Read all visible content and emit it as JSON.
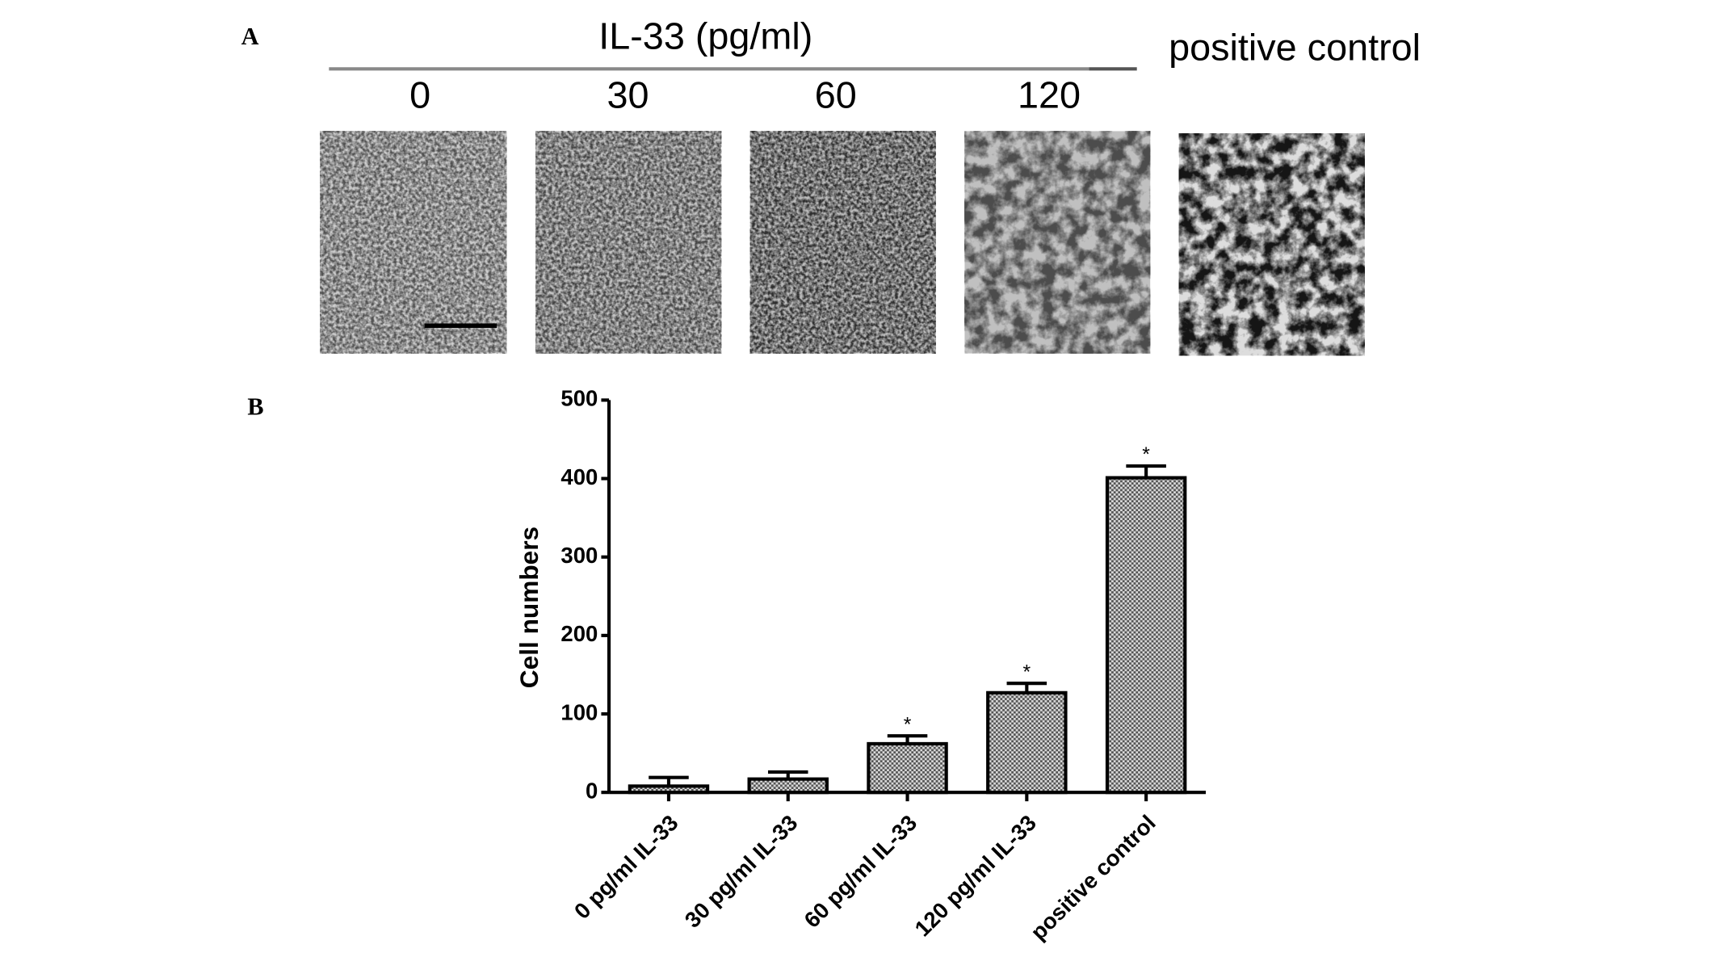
{
  "panel_labels": [
    "A",
    "B"
  ],
  "panel_a": {
    "header": "IL-33 (pg/ml)",
    "concentrations": [
      "0",
      "30",
      "60",
      "120"
    ],
    "control_label": "positive control"
  },
  "chart_data": {
    "type": "bar",
    "ylabel": "Cell numbers",
    "categories": [
      "0 pg/ml IL-33",
      "30 pg/ml IL-33",
      "60 pg/ml IL-33",
      "120 pg/ml IL-33",
      "positive control"
    ],
    "values": [
      8,
      17,
      62,
      127,
      401
    ],
    "errors": [
      11,
      9,
      10,
      12,
      15
    ],
    "significance": [
      null,
      null,
      "*",
      "*",
      "*"
    ],
    "ylim": [
      0,
      500
    ],
    "yticks": [
      0,
      100,
      200,
      300,
      400,
      500
    ],
    "color": "#9a9a9a"
  }
}
